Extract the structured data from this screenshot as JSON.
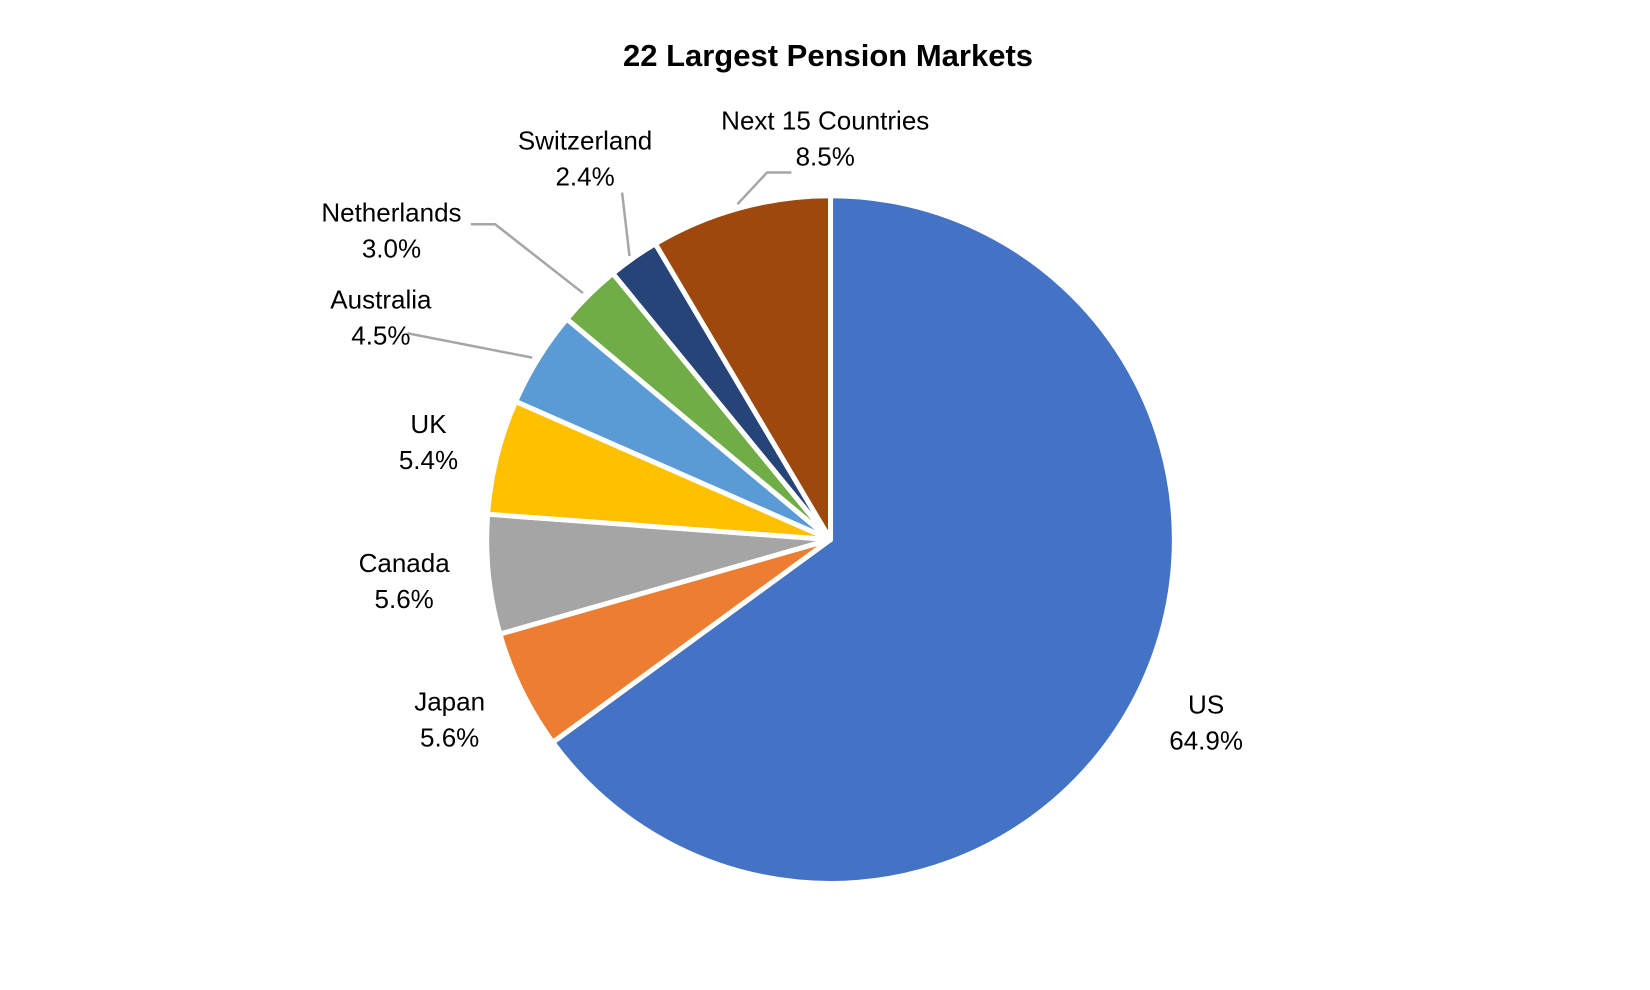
{
  "chart_data": {
    "type": "pie",
    "title": "22 Largest Pension Markets",
    "categories": [
      "US",
      "Japan",
      "Canada",
      "UK",
      "Australia",
      "Netherlands",
      "Switzerland",
      "Next 15 Countries"
    ],
    "values": [
      64.9,
      5.6,
      5.6,
      5.4,
      4.5,
      3.0,
      2.4,
      8.5
    ],
    "value_labels": [
      "64.9%",
      "5.6%",
      "5.6%",
      "5.4%",
      "4.5%",
      "3.0%",
      "2.4%",
      "8.5%"
    ],
    "colors": [
      "#4472c4",
      "#ed7d31",
      "#a5a5a5",
      "#ffc000",
      "#5b9bd5",
      "#70ad47",
      "#264478",
      "#9e480e"
    ]
  }
}
